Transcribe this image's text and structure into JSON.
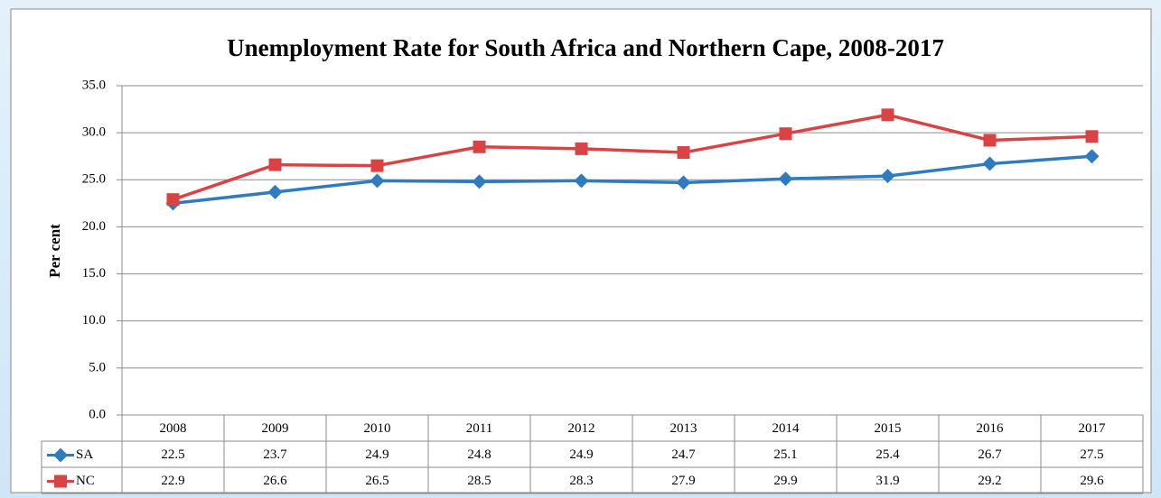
{
  "chart_data": {
    "type": "line",
    "title": "Unemployment  Rate for South Africa and Northern  Cape, 2008-2017",
    "y_label": "Per cent",
    "categories": [
      "2008",
      "2009",
      "2010",
      "2011",
      "2012",
      "2013",
      "2014",
      "2015",
      "2016",
      "2017"
    ],
    "series": [
      {
        "name": "SA",
        "color": "#2e7bbf",
        "marker": "diamond",
        "values": [
          22.5,
          23.7,
          24.9,
          24.8,
          24.9,
          24.7,
          25.1,
          25.4,
          26.7,
          27.5
        ]
      },
      {
        "name": "NC",
        "color": "#d94343",
        "marker": "square",
        "values": [
          22.9,
          26.6,
          26.5,
          28.5,
          28.3,
          27.9,
          29.9,
          31.9,
          29.2,
          29.6
        ]
      }
    ],
    "ylim": [
      0,
      35
    ],
    "yticks": [
      {
        "value": 0,
        "label": "0.0"
      },
      {
        "value": 5,
        "label": "5.0"
      },
      {
        "value": 10,
        "label": "10.0"
      },
      {
        "value": 15,
        "label": "15.0"
      },
      {
        "value": 20,
        "label": "20.0"
      },
      {
        "value": 25,
        "label": "25.0"
      },
      {
        "value": 30,
        "label": "30.0"
      },
      {
        "value": 35,
        "label": "35.0"
      }
    ],
    "grid": true,
    "data_table": true
  }
}
